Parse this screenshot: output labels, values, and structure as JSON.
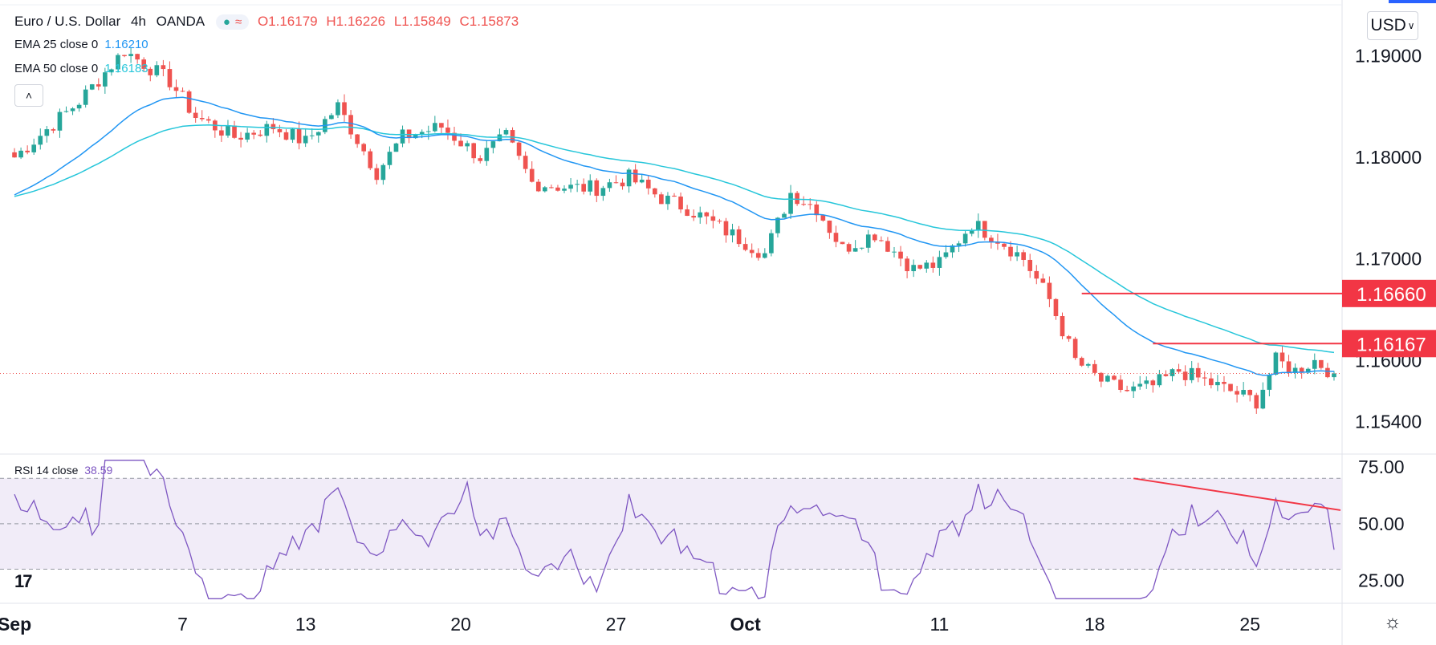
{
  "header": {
    "symbol": "Euro / U.S. Dollar",
    "interval": "4h",
    "exchange": "OANDA",
    "ohlc": {
      "o": "O1.16179",
      "h": "H1.16226",
      "l": "L1.15849",
      "c": "C1.15873"
    }
  },
  "indicators": {
    "ema25": {
      "label": "EMA 25 close 0",
      "value": "1.16210",
      "color": "#2196f3"
    },
    "ema50": {
      "label": "EMA 50 close 0",
      "value": "1.16183",
      "color": "#26c6da"
    },
    "rsi": {
      "label": "RSI 14 close",
      "value": "38.59",
      "color": "#7e57c2"
    }
  },
  "currency": "USD",
  "icons": {
    "collapse": "chevron-up-icon",
    "settings": "gear-icon",
    "logo": "tv-logo-icon"
  },
  "colors": {
    "up": "#26a69a",
    "down": "#ef5350",
    "annotation": "#f23645",
    "rsi_band": "#ede7f6"
  },
  "chart_data": {
    "type": "candlestick",
    "title": "Euro / U.S. Dollar, 4h, OANDA",
    "price_axis": {
      "range": [
        1.1508,
        1.195
      ],
      "ticks": [
        "1.19000",
        "1.18000",
        "1.17000",
        "1.16000",
        "1.15400"
      ],
      "tick_values": [
        1.19,
        1.18,
        1.17,
        1.16,
        1.154
      ]
    },
    "price_labels": [
      {
        "value": 1.1666,
        "text": "1.16660"
      },
      {
        "value": 1.16167,
        "text": "1.16167"
      }
    ],
    "last_price": 1.15873,
    "x_axis": {
      "labels": [
        "Sep",
        "7",
        "13",
        "20",
        "27",
        "Oct",
        "11",
        "18",
        "25"
      ],
      "bar_index": [
        0,
        26,
        45,
        69,
        93,
        113,
        143,
        167,
        191
      ],
      "total_bars": 205
    },
    "anchors": [
      [
        0,
        1.18
      ],
      [
        10,
        1.1855
      ],
      [
        17,
        1.1905
      ],
      [
        24,
        1.1875
      ],
      [
        28,
        1.184
      ],
      [
        34,
        1.182
      ],
      [
        40,
        1.183
      ],
      [
        45,
        1.1815
      ],
      [
        50,
        1.185
      ],
      [
        56,
        1.1785
      ],
      [
        60,
        1.182
      ],
      [
        66,
        1.183
      ],
      [
        72,
        1.18
      ],
      [
        76,
        1.182
      ],
      [
        80,
        1.1775
      ],
      [
        86,
        1.177
      ],
      [
        90,
        1.177
      ],
      [
        95,
        1.178
      ],
      [
        100,
        1.176
      ],
      [
        104,
        1.175
      ],
      [
        108,
        1.1735
      ],
      [
        112,
        1.172
      ],
      [
        116,
        1.1705
      ],
      [
        120,
        1.1765
      ],
      [
        124,
        1.175
      ],
      [
        128,
        1.171
      ],
      [
        133,
        1.1725
      ],
      [
        139,
        1.169
      ],
      [
        143,
        1.1695
      ],
      [
        148,
        1.1735
      ],
      [
        152,
        1.172
      ],
      [
        156,
        1.17
      ],
      [
        160,
        1.166
      ],
      [
        164,
        1.16
      ],
      [
        168,
        1.158
      ],
      [
        172,
        1.157
      ],
      [
        176,
        1.1575
      ],
      [
        180,
        1.159
      ],
      [
        184,
        1.158
      ],
      [
        188,
        1.157
      ],
      [
        192,
        1.156
      ],
      [
        195,
        1.16
      ],
      [
        198,
        1.159
      ],
      [
        201,
        1.16
      ],
      [
        204,
        1.1587
      ]
    ],
    "ema25": {
      "name": "EMA 25",
      "last": 1.1621
    },
    "ema50": {
      "name": "EMA 50",
      "last": 1.16183
    },
    "rsi": {
      "range": [
        15,
        80
      ],
      "ticks": [
        "75.00",
        "50.00",
        "25.00"
      ],
      "tick_values": [
        75,
        50,
        25
      ],
      "bands": [
        70,
        50,
        30
      ],
      "last": 38.59
    },
    "annotations": [
      {
        "type": "hline",
        "price": 1.1666,
        "from_bar": 165,
        "to_bar": 205
      },
      {
        "type": "hline",
        "price": 1.16167,
        "from_bar": 176,
        "to_bar": 205
      },
      {
        "type": "rsi_trend",
        "from": [
          173,
          70
        ],
        "to": [
          205,
          56
        ]
      }
    ]
  }
}
